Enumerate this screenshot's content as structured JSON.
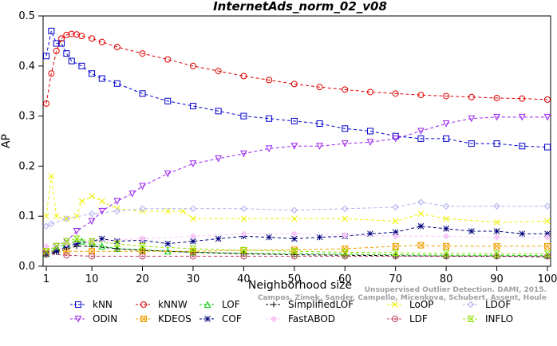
{
  "chart_data": {
    "type": "line",
    "title": "InternetAds_norm_02_v08",
    "xlabel": "Neighborhood size",
    "ylabel": "AP",
    "xlim": [
      1,
      100
    ],
    "ylim": [
      0,
      0.5
    ],
    "xticks": [
      1,
      10,
      20,
      30,
      40,
      50,
      60,
      70,
      80,
      90,
      100
    ],
    "yticks": [
      0.0,
      0.1,
      0.2,
      0.3,
      0.4,
      0.5
    ],
    "credit": "Campos, Zimek, Sander, Campello, Micenkova, Schubert, Assent, Houle",
    "credit_line1": "Unsupervised Outlier Detection. DAMI, 2015.",
    "series": [
      {
        "name": "kNN",
        "color": "#0000cc",
        "marker": "square",
        "x": [
          1,
          2,
          3,
          4,
          5,
          6,
          8,
          10,
          12,
          15,
          20,
          25,
          30,
          35,
          40,
          45,
          50,
          55,
          60,
          65,
          70,
          75,
          80,
          85,
          90,
          95,
          100
        ],
        "y": [
          0.42,
          0.47,
          0.445,
          0.445,
          0.425,
          0.41,
          0.4,
          0.385,
          0.375,
          0.365,
          0.345,
          0.33,
          0.32,
          0.31,
          0.3,
          0.295,
          0.29,
          0.285,
          0.275,
          0.27,
          0.26,
          0.255,
          0.255,
          0.245,
          0.245,
          0.24,
          0.238
        ]
      },
      {
        "name": "kNNW",
        "color": "#e00000",
        "marker": "circle",
        "x": [
          1,
          2,
          3,
          4,
          5,
          6,
          7,
          8,
          10,
          12,
          15,
          20,
          25,
          30,
          35,
          40,
          45,
          50,
          55,
          60,
          65,
          70,
          75,
          80,
          85,
          90,
          95,
          100
        ],
        "y": [
          0.325,
          0.385,
          0.43,
          0.455,
          0.462,
          0.464,
          0.463,
          0.46,
          0.455,
          0.448,
          0.438,
          0.425,
          0.413,
          0.4,
          0.39,
          0.38,
          0.372,
          0.364,
          0.358,
          0.353,
          0.348,
          0.345,
          0.342,
          0.34,
          0.338,
          0.336,
          0.335,
          0.333
        ]
      },
      {
        "name": "LOF",
        "color": "#00cc00",
        "marker": "triangle",
        "x": [
          1,
          3,
          5,
          7,
          8,
          10,
          12,
          15,
          20,
          25,
          30,
          40,
          50,
          60,
          70,
          80,
          90,
          100
        ],
        "y": [
          0.025,
          0.035,
          0.045,
          0.05,
          0.05,
          0.045,
          0.04,
          0.035,
          0.033,
          0.03,
          0.028,
          0.026,
          0.025,
          0.024,
          0.023,
          0.022,
          0.022,
          0.021
        ]
      },
      {
        "name": "SimplifiedLOF",
        "color": "#000000",
        "marker": "plus",
        "x": [
          1,
          3,
          5,
          7,
          10,
          15,
          20,
          30,
          40,
          50,
          60,
          70,
          80,
          90,
          100
        ],
        "y": [
          0.022,
          0.028,
          0.035,
          0.04,
          0.04,
          0.035,
          0.032,
          0.028,
          0.025,
          0.023,
          0.022,
          0.021,
          0.02,
          0.02,
          0.019
        ]
      },
      {
        "name": "LoOP",
        "color": "#f0f000",
        "marker": "x",
        "x": [
          1,
          2,
          3,
          5,
          7,
          8,
          10,
          12,
          15,
          20,
          25,
          28,
          30,
          40,
          50,
          60,
          70,
          75,
          80,
          90,
          100
        ],
        "y": [
          0.1,
          0.18,
          0.1,
          0.095,
          0.1,
          0.13,
          0.14,
          0.13,
          0.115,
          0.11,
          0.11,
          0.11,
          0.095,
          0.095,
          0.095,
          0.095,
          0.09,
          0.105,
          0.095,
          0.088,
          0.09
        ]
      },
      {
        "name": "LDOF",
        "color": "#b0b0f0",
        "marker": "diamond",
        "x": [
          1,
          2,
          5,
          10,
          15,
          20,
          30,
          40,
          50,
          60,
          70,
          75,
          80,
          90,
          100
        ],
        "y": [
          0.08,
          0.085,
          0.095,
          0.105,
          0.11,
          0.115,
          0.115,
          0.115,
          0.112,
          0.115,
          0.118,
          0.128,
          0.12,
          0.12,
          0.12
        ]
      },
      {
        "name": "ODIN",
        "color": "#9922ee",
        "marker": "tri-down",
        "x": [
          1,
          3,
          5,
          7,
          10,
          12,
          15,
          18,
          20,
          25,
          30,
          35,
          40,
          45,
          50,
          55,
          60,
          65,
          70,
          75,
          80,
          85,
          90,
          95,
          100
        ],
        "y": [
          0.03,
          0.04,
          0.05,
          0.07,
          0.09,
          0.11,
          0.13,
          0.145,
          0.16,
          0.185,
          0.205,
          0.215,
          0.225,
          0.235,
          0.24,
          0.24,
          0.245,
          0.248,
          0.255,
          0.27,
          0.285,
          0.295,
          0.298,
          0.298,
          0.298
        ]
      },
      {
        "name": "KDEOS",
        "color": "#f0a000",
        "marker": "square-x",
        "x": [
          1,
          5,
          10,
          20,
          30,
          40,
          50,
          60,
          70,
          75,
          80,
          90,
          100
        ],
        "y": [
          0.03,
          0.03,
          0.03,
          0.03,
          0.03,
          0.032,
          0.033,
          0.035,
          0.04,
          0.042,
          0.04,
          0.04,
          0.04
        ]
      },
      {
        "name": "COF",
        "color": "#00007a",
        "marker": "star",
        "x": [
          1,
          3,
          5,
          7,
          10,
          12,
          15,
          20,
          25,
          30,
          35,
          40,
          45,
          50,
          55,
          60,
          65,
          70,
          75,
          80,
          85,
          90,
          95,
          100
        ],
        "y": [
          0.025,
          0.03,
          0.04,
          0.045,
          0.05,
          0.055,
          0.05,
          0.052,
          0.045,
          0.05,
          0.055,
          0.06,
          0.058,
          0.055,
          0.058,
          0.06,
          0.065,
          0.068,
          0.08,
          0.075,
          0.07,
          0.07,
          0.065,
          0.065
        ]
      },
      {
        "name": "FastABOD",
        "color": "#f8c8f8",
        "marker": "diamond-fill",
        "x": [
          1,
          5,
          10,
          20,
          30,
          40,
          50,
          60,
          70,
          80,
          90,
          100
        ],
        "y": [
          0.04,
          0.045,
          0.05,
          0.055,
          0.06,
          0.065,
          0.065,
          0.062,
          0.06,
          0.06,
          0.058,
          0.058
        ]
      },
      {
        "name": "LDF",
        "color": "#c04060",
        "marker": "circle-dot",
        "x": [
          1,
          5,
          10,
          20,
          30,
          40,
          50,
          60,
          70,
          80,
          90,
          100
        ],
        "y": [
          0.025,
          0.022,
          0.02,
          0.02,
          0.02,
          0.02,
          0.02,
          0.02,
          0.02,
          0.02,
          0.02,
          0.02
        ]
      },
      {
        "name": "INFLO",
        "color": "#90e000",
        "marker": "hourglass",
        "x": [
          1,
          3,
          5,
          7,
          10,
          15,
          20,
          30,
          40,
          50,
          60,
          70,
          80,
          90,
          100
        ],
        "y": [
          0.03,
          0.04,
          0.05,
          0.055,
          0.05,
          0.045,
          0.04,
          0.035,
          0.032,
          0.03,
          0.028,
          0.027,
          0.026,
          0.025,
          0.025
        ]
      }
    ],
    "legend_rows": [
      [
        "kNN",
        "kNNW",
        "LOF",
        "SimplifiedLOF",
        "LoOP",
        "LDOF"
      ],
      [
        "ODIN",
        "KDEOS",
        "COF",
        "FastABOD",
        "LDF",
        "INFLO"
      ]
    ]
  }
}
